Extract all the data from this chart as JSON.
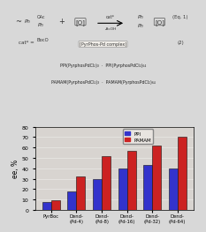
{
  "categories": [
    "PyrBoc",
    "Dend-\n(Pd-4)",
    "Dend-\n(Pd-8)",
    "Dend-\n(Pd-16)",
    "Dend-\n(Pd-32)",
    "Dend-\n(Pd-64)"
  ],
  "ppi_values": [
    8,
    18,
    30,
    40,
    43,
    40
  ],
  "pamam_values": [
    9,
    32,
    52,
    57,
    62,
    70
  ],
  "ppi_color": "#3333cc",
  "pamam_color": "#cc2222",
  "ylabel": "ee, %",
  "ylim": [
    0,
    80
  ],
  "yticks": [
    0,
    10,
    20,
    30,
    40,
    50,
    60,
    70,
    80
  ],
  "legend_ppi": "PPI",
  "legend_pamam": "PAMAM",
  "bar_width": 0.35,
  "fig_bg": "#d8d8d8",
  "top_bg": "#e8e4e0",
  "chart_bg": "#d8d4d0"
}
